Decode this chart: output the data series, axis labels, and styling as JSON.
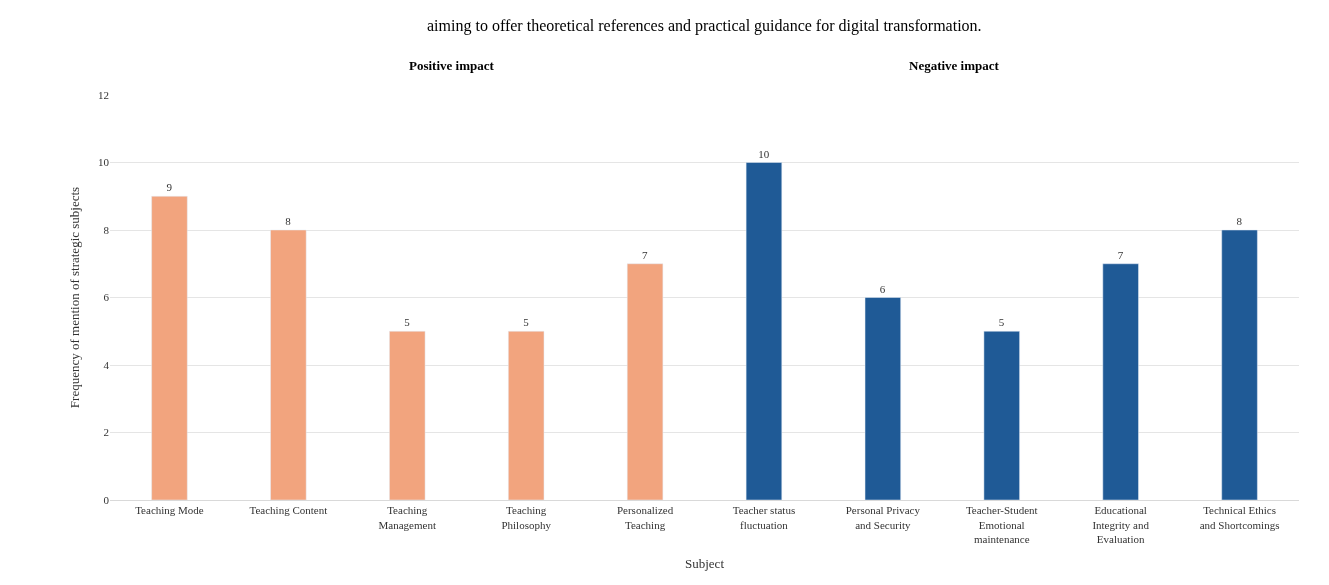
{
  "chart_data": {
    "type": "bar",
    "categories": [
      "Teaching Mode",
      "Teaching Content",
      "Teaching Management",
      "Teaching Philosophy",
      "Personalized Teaching",
      "Teacher status fluctuation",
      "Personal Privacy and Security",
      "Teacher-Student Emotional maintenance",
      "Educational Integrity and Evaluation",
      "Technical Ethics and Shortcomings"
    ],
    "values": [
      9,
      8,
      5,
      5,
      7,
      10,
      6,
      5,
      7,
      8
    ],
    "colors": [
      "#f2a47e",
      "#f2a47e",
      "#f2a47e",
      "#f2a47e",
      "#f2a47e",
      "#1f5a96",
      "#1f5a96",
      "#1f5a96",
      "#1f5a96",
      "#1f5a96"
    ],
    "xlabel": "Subject",
    "ylabel": "Frequency of mention of strategic subjects",
    "ylim": [
      0,
      12
    ],
    "yticks": [
      0,
      2,
      4,
      6,
      8,
      10,
      12
    ],
    "grid": "y",
    "legend": false,
    "data_labels": true,
    "annotations": [
      "aiming to offer theoretical references and practical guidance for digital transformation.",
      "Positive impact",
      "Negative impact"
    ]
  }
}
